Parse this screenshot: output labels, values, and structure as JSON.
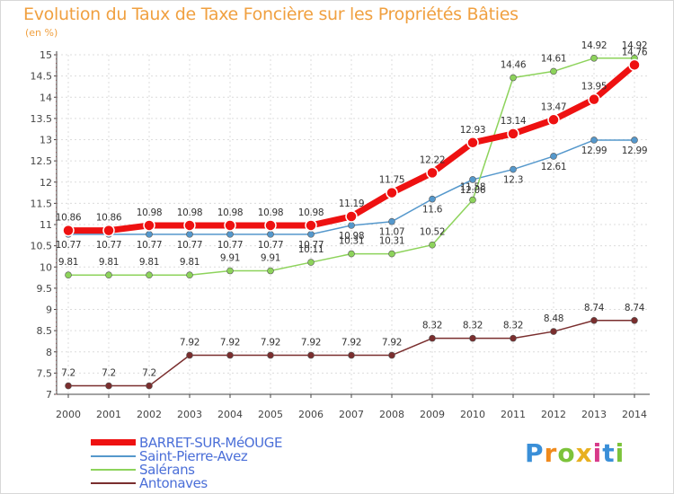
{
  "header": {
    "title": "Evolution du Taux de Taxe Foncière sur les Propriétés Bâties",
    "unit": "(en %)"
  },
  "logo": {
    "letters": [
      "P",
      "r",
      "o",
      "x",
      "i",
      "t",
      "i"
    ],
    "colors": [
      "#3a8fd8",
      "#f08a1c",
      "#7cc33a",
      "#e8b020",
      "#d83a8a",
      "#3a8fd8",
      "#7cc33a"
    ]
  },
  "chart_data": {
    "type": "line",
    "title": "Evolution du Taux de Taxe Foncière sur les Propriétés Bâties",
    "xlabel": "",
    "ylabel": "(en %)",
    "x": [
      "2000",
      "2001",
      "2002",
      "2003",
      "2004",
      "2005",
      "2006",
      "2007",
      "2008",
      "2009",
      "2010",
      "2011",
      "2012",
      "2013",
      "2014"
    ],
    "ylim": [
      7,
      15
    ],
    "yticks": [
      "7",
      "7.5",
      "8",
      "8.5",
      "9",
      "9.5",
      "10",
      "10.5",
      "11",
      "11.5",
      "12",
      "12.5",
      "13",
      "13.5",
      "14",
      "14.5",
      "15"
    ],
    "grid": true,
    "legend_position": "bottom-left",
    "series": [
      {
        "name": "BARRET-SUR-MéOUGE",
        "color": "#ee1111",
        "values": [
          10.86,
          10.86,
          10.98,
          10.98,
          10.98,
          10.98,
          10.98,
          11.19,
          11.75,
          12.22,
          12.93,
          13.14,
          13.47,
          13.95,
          14.76
        ],
        "labels": [
          "10.86",
          "10.86",
          "10.98",
          "10.98",
          "10.98",
          "10.98",
          "10.98",
          "11.19",
          "11.75",
          "12.22",
          "12.93",
          "13.14",
          "13.47",
          "13.95",
          "14.76"
        ]
      },
      {
        "name": "Saint-Pierre-Avez",
        "color": "#5598cc",
        "values": [
          10.77,
          10.77,
          10.77,
          10.77,
          10.77,
          10.77,
          10.77,
          10.98,
          11.07,
          11.6,
          12.06,
          12.3,
          12.61,
          12.99,
          12.99
        ],
        "labels": [
          "10.77",
          "10.77",
          "10.77",
          "10.77",
          "10.77",
          "10.77",
          "10.77",
          "10.98",
          "11.07",
          "11.6",
          "12.06",
          "12.3",
          "12.61",
          "12.99",
          "12.99"
        ]
      },
      {
        "name": "Salérans",
        "color": "#8dd35b",
        "values": [
          9.81,
          9.81,
          9.81,
          9.81,
          9.91,
          9.91,
          10.11,
          10.31,
          10.31,
          10.52,
          11.58,
          14.46,
          14.61,
          14.92,
          14.92
        ],
        "labels": [
          "9.81",
          "9.81",
          "9.81",
          "9.81",
          "9.91",
          "9.91",
          "10.11",
          "10.31",
          "10.31",
          "10.52",
          "11.58",
          "14.46",
          "14.61",
          "14.92",
          "14.92"
        ]
      },
      {
        "name": "Antonaves",
        "color": "#7a2e2e",
        "values": [
          7.2,
          7.2,
          7.2,
          7.92,
          7.92,
          7.92,
          7.92,
          7.92,
          7.92,
          8.32,
          8.32,
          8.32,
          8.48,
          8.74,
          8.74
        ],
        "labels": [
          "7.2",
          "7.2",
          "7.2",
          "7.92",
          "7.92",
          "7.92",
          "7.92",
          "7.92",
          "7.92",
          "8.32",
          "8.32",
          "8.32",
          "8.48",
          "8.74",
          "8.74"
        ]
      }
    ]
  }
}
